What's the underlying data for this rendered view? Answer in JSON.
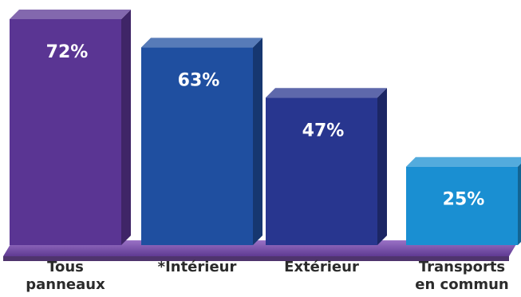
{
  "chart_data": {
    "type": "bar",
    "title": "",
    "xlabel": "",
    "ylabel": "",
    "ylim": [
      0,
      72
    ],
    "grid": false,
    "legend": "none",
    "style": "3d",
    "categories": [
      "Tous\npanneaux",
      "*Intérieur",
      "Extérieur",
      "Transports\nen commun"
    ],
    "values": [
      72,
      63,
      47,
      25
    ],
    "data_labels": [
      "72%",
      "63%",
      "47%",
      "25%"
    ],
    "colors": {
      "bars": [
        "#5a3593",
        "#1f4fa0",
        "#28368f",
        "#1a8fd2"
      ],
      "floor": "#7a50a8",
      "category_text": "#2b2b2b",
      "value_text": "#ffffff"
    }
  }
}
